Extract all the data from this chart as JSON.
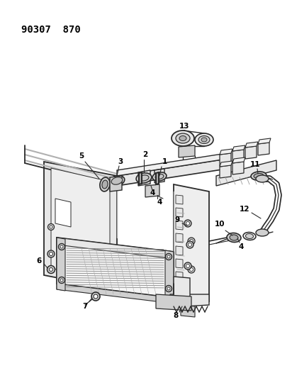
{
  "title": "90307  870",
  "bg_color": "#ffffff",
  "line_color": "#2a2a2a",
  "label_color": "#000000",
  "fig_width": 4.12,
  "fig_height": 5.33,
  "dpi": 100
}
